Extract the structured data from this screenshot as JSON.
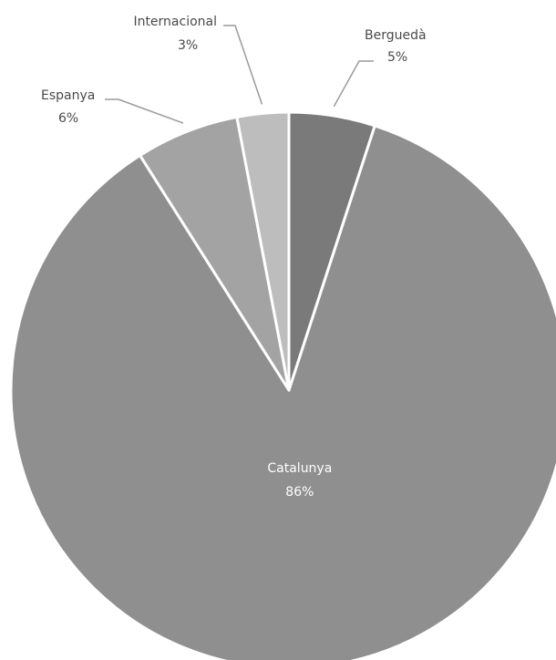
{
  "chart_data": {
    "type": "pie",
    "title": "",
    "slices": [
      {
        "label": "Berguedà",
        "value": 5,
        "value_text": "5%",
        "color": "#7a7a7a"
      },
      {
        "label": "Catalunya",
        "value": 86,
        "value_text": "86%",
        "color": "#8f8f8f"
      },
      {
        "label": "Espanya",
        "value": 6,
        "value_text": "6%",
        "color": "#a3a3a3"
      },
      {
        "label": "Internacional",
        "value": 3,
        "value_text": "3%",
        "color": "#bdbdbd"
      }
    ],
    "start_angle_deg": 0,
    "direction": "clockwise",
    "legend": "none"
  }
}
